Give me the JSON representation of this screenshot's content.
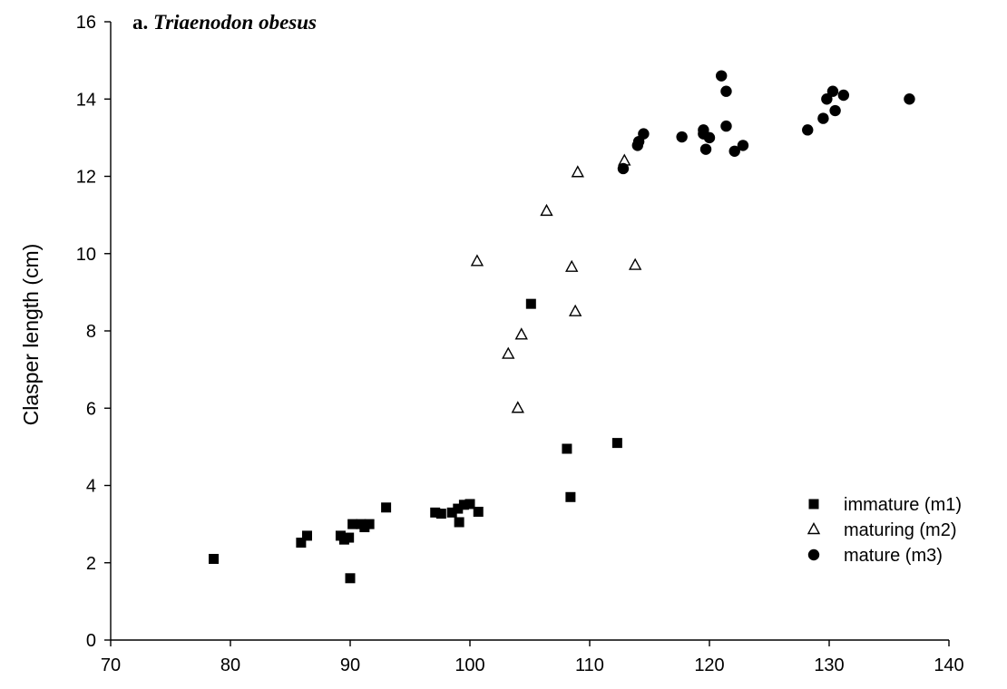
{
  "panel_label": {
    "prefix": "a. ",
    "species": "Triaenodon obesus"
  },
  "chart_data": {
    "type": "scatter",
    "title": "",
    "xlabel": "",
    "ylabel": "Clasper length (cm)",
    "xlim": [
      70,
      140
    ],
    "ylim": [
      0,
      16
    ],
    "x_ticks": [
      70,
      80,
      90,
      100,
      110,
      120,
      130,
      140
    ],
    "y_ticks": [
      0,
      2,
      4,
      6,
      8,
      10,
      12,
      14,
      16
    ],
    "grid": false,
    "legend_position": "bottom-right",
    "series": [
      {
        "name": "immature (m1)",
        "marker": "square-filled",
        "color": "#000000",
        "points": [
          [
            78.6,
            2.1
          ],
          [
            85.9,
            2.52
          ],
          [
            86.4,
            2.7
          ],
          [
            89.2,
            2.7
          ],
          [
            89.5,
            2.6
          ],
          [
            89.9,
            2.65
          ],
          [
            90.2,
            3.0
          ],
          [
            90.0,
            1.6
          ],
          [
            90.9,
            3.0
          ],
          [
            91.2,
            2.92
          ],
          [
            91.6,
            3.0
          ],
          [
            93.0,
            3.43
          ],
          [
            97.1,
            3.3
          ],
          [
            97.6,
            3.27
          ],
          [
            98.5,
            3.3
          ],
          [
            99.0,
            3.4
          ],
          [
            99.1,
            3.05
          ],
          [
            99.5,
            3.5
          ],
          [
            100.0,
            3.52
          ],
          [
            100.7,
            3.32
          ],
          [
            105.1,
            8.7
          ],
          [
            108.1,
            4.95
          ],
          [
            108.4,
            3.7
          ],
          [
            112.3,
            5.1
          ]
        ]
      },
      {
        "name": "maturing (m2)",
        "marker": "triangle-open",
        "color": "#000000",
        "points": [
          [
            100.6,
            9.8
          ],
          [
            103.2,
            7.4
          ],
          [
            104.0,
            6.0
          ],
          [
            104.3,
            7.9
          ],
          [
            106.4,
            11.1
          ],
          [
            108.5,
            9.65
          ],
          [
            108.8,
            8.5
          ],
          [
            109.0,
            12.1
          ],
          [
            112.9,
            12.4
          ],
          [
            113.8,
            9.7
          ]
        ]
      },
      {
        "name": "mature (m3)",
        "marker": "circle-filled",
        "color": "#000000",
        "points": [
          [
            112.8,
            12.2
          ],
          [
            114.0,
            12.8
          ],
          [
            114.1,
            12.9
          ],
          [
            114.5,
            13.1
          ],
          [
            117.7,
            13.02
          ],
          [
            119.5,
            13.2
          ],
          [
            119.5,
            13.1
          ],
          [
            119.7,
            12.7
          ],
          [
            120.0,
            13.0
          ],
          [
            121.0,
            14.6
          ],
          [
            121.4,
            14.2
          ],
          [
            121.4,
            13.3
          ],
          [
            122.1,
            12.65
          ],
          [
            122.8,
            12.8
          ],
          [
            128.2,
            13.2
          ],
          [
            129.5,
            13.5
          ],
          [
            129.8,
            14.0
          ],
          [
            130.3,
            14.2
          ],
          [
            130.5,
            13.7
          ],
          [
            131.2,
            14.1
          ],
          [
            136.7,
            14.0
          ]
        ]
      }
    ]
  }
}
